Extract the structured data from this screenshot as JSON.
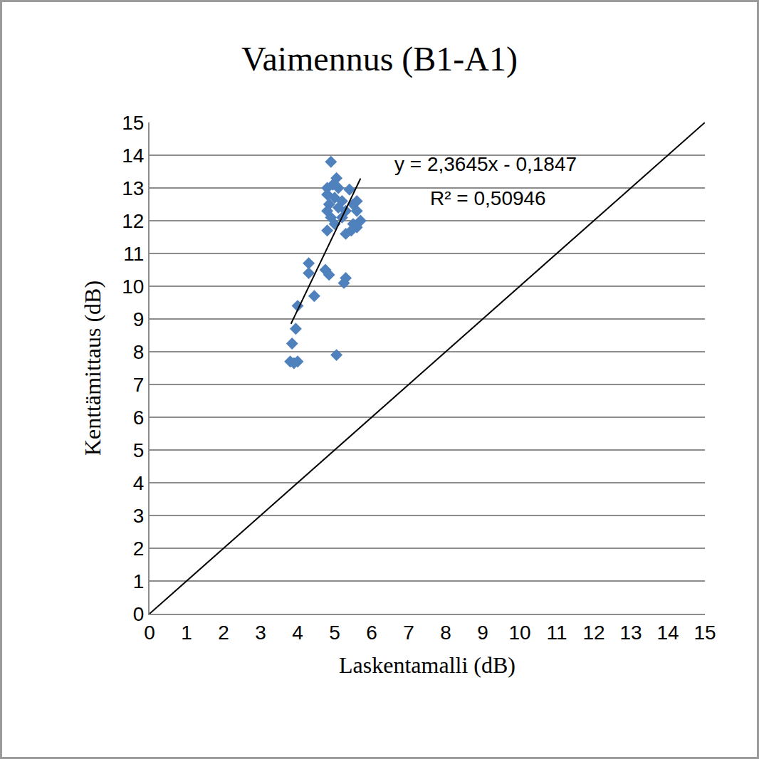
{
  "chart_data": {
    "type": "scatter",
    "title": "Vaimennus (B1-A1)",
    "x_label": "Laskentamalli (dB)",
    "y_label": "Kenttämittaus (dB)",
    "xlim": [
      0,
      15
    ],
    "ylim": [
      0,
      15
    ],
    "xticks": [
      0,
      1,
      2,
      3,
      4,
      5,
      6,
      7,
      8,
      9,
      10,
      11,
      12,
      13,
      14,
      15
    ],
    "yticks": [
      0,
      1,
      2,
      3,
      4,
      5,
      6,
      7,
      8,
      9,
      10,
      11,
      12,
      13,
      14,
      15
    ],
    "grid": "y",
    "series": [
      {
        "type": "scatter",
        "color": "#4f81bd",
        "marker": "diamond",
        "x": [
          4.9,
          5.05,
          4.95,
          5.1,
          4.8,
          5.4,
          4.8,
          5.0,
          5.2,
          4.85,
          5.5,
          5.6,
          5.1,
          4.8,
          5.3,
          5.6,
          4.9,
          5.2,
          5.7,
          5.5,
          5.0,
          4.8,
          5.3,
          5.6,
          5.45,
          4.3,
          4.75,
          4.3,
          4.85,
          5.3,
          5.25,
          4.45,
          4.0,
          3.95,
          3.85,
          3.8,
          3.9,
          4.0,
          5.05
        ],
        "values": [
          13.8,
          13.3,
          13.1,
          13.0,
          13.0,
          12.95,
          12.8,
          12.7,
          12.6,
          12.5,
          12.5,
          12.6,
          12.4,
          12.3,
          12.3,
          12.3,
          12.1,
          12.1,
          12.0,
          11.9,
          11.9,
          11.7,
          11.6,
          11.8,
          11.7,
          10.7,
          10.5,
          10.4,
          10.35,
          10.25,
          10.1,
          9.7,
          9.4,
          8.7,
          8.25,
          7.7,
          7.65,
          7.7,
          7.9
        ]
      },
      {
        "type": "line",
        "color": "#000000",
        "line_style": "solid",
        "x": [
          3.82,
          5.7
        ],
        "values": [
          8.85,
          13.29
        ]
      },
      {
        "type": "line",
        "color": "#000000",
        "line_style": "solid",
        "x": [
          0,
          15
        ],
        "values": [
          0,
          15
        ]
      }
    ],
    "annotations": [
      "y = 2,3645x - 0,1847",
      "R² = 0,50946"
    ]
  }
}
